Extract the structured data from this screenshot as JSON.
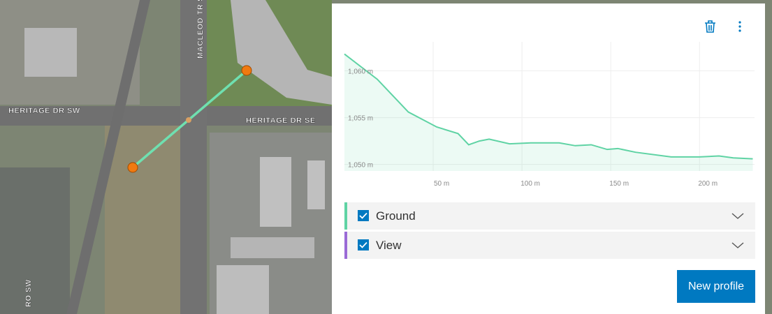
{
  "map": {
    "labels": [
      "HERITAGE DR SW",
      "HERITAGE DR SE",
      "MACLEOD TR S",
      "RO SW"
    ]
  },
  "panel": {
    "chart_data": {
      "type": "area",
      "color": "#5fd3a4",
      "x": [
        0,
        18.5,
        36,
        52,
        64,
        70,
        76,
        81.5,
        93,
        105,
        121,
        130,
        139,
        148,
        154,
        164,
        184,
        200,
        211,
        219,
        230
      ],
      "values": [
        1061.8,
        1059.1,
        1055.6,
        1054.0,
        1053.3,
        1052.1,
        1052.5,
        1052.7,
        1052.2,
        1052.3,
        1052.3,
        1052.0,
        1052.1,
        1051.6,
        1051.7,
        1051.3,
        1050.8,
        1050.8,
        1050.9,
        1050.7,
        1050.6
      ],
      "xlim": [
        0,
        231
      ],
      "ylim": [
        1049.3,
        1063.1
      ],
      "xticks": [
        {
          "value": 50,
          "label": "50 m"
        },
        {
          "value": 100,
          "label": "100 m"
        },
        {
          "value": 150,
          "label": "150 m"
        },
        {
          "value": 200,
          "label": "200 m"
        }
      ],
      "yticks": [
        {
          "value": 1050,
          "label": "1,050 m"
        },
        {
          "value": 1055,
          "label": "1,055 m"
        },
        {
          "value": 1060,
          "label": "1,060 m"
        }
      ],
      "grid": true
    },
    "layers": [
      {
        "name": "Ground",
        "color": "#5fd3a4"
      },
      {
        "name": "View",
        "color": "#9a6ad6"
      }
    ],
    "button": "New profile"
  }
}
